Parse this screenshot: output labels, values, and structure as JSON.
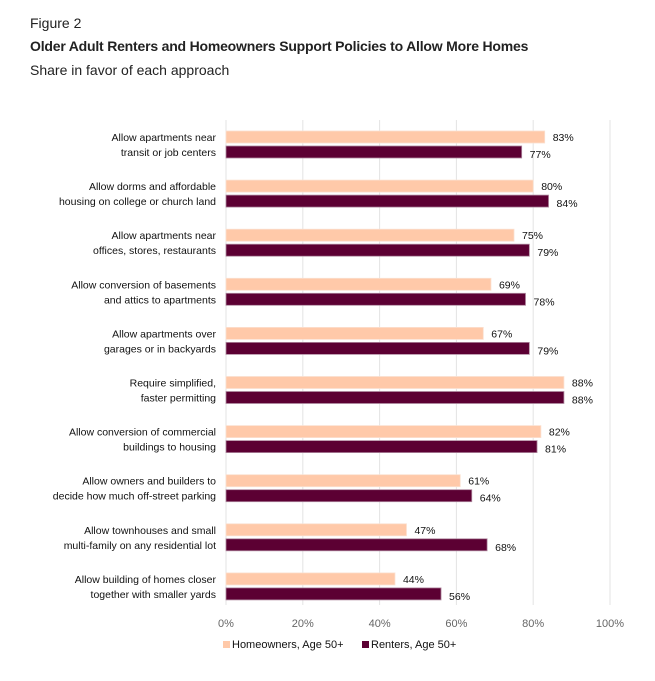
{
  "figure_label": "Figure 2",
  "chart_data": {
    "type": "bar",
    "orientation": "horizontal",
    "title": "Older Adult Renters and Homeowners Support Policies to Allow More Homes",
    "subtitle": "Share in favor of each approach",
    "categories": [
      [
        "Allow apartments near",
        "transit or job centers"
      ],
      [
        "Allow dorms and affordable",
        "housing on college or church land"
      ],
      [
        "Allow apartments near",
        "offices, stores, restaurants"
      ],
      [
        "Allow conversion of basements",
        "and attics to apartments"
      ],
      [
        "Allow apartments over",
        "garages or in backyards"
      ],
      [
        "Require simplified,",
        "faster permitting"
      ],
      [
        "Allow conversion of commercial",
        "buildings to housing"
      ],
      [
        "Allow owners and builders to",
        "decide how much off-street parking"
      ],
      [
        "Allow townhouses and small",
        "multi-family on any residential lot"
      ],
      [
        "Allow building of homes closer",
        "together with smaller yards"
      ]
    ],
    "series": [
      {
        "name": "Homeowners, Age 50+",
        "color": "#FFC9A9",
        "values": [
          83,
          80,
          75,
          69,
          67,
          88,
          82,
          61,
          47,
          44
        ]
      },
      {
        "name": "Renters, Age 50+",
        "color": "#5C0033",
        "values": [
          77,
          84,
          79,
          78,
          79,
          88,
          81,
          64,
          68,
          56
        ]
      }
    ],
    "xlim": [
      0,
      100
    ],
    "xticks": [
      "0%",
      "20%",
      "40%",
      "60%",
      "80%",
      "100%"
    ],
    "grid": true,
    "legend": "bottom"
  }
}
